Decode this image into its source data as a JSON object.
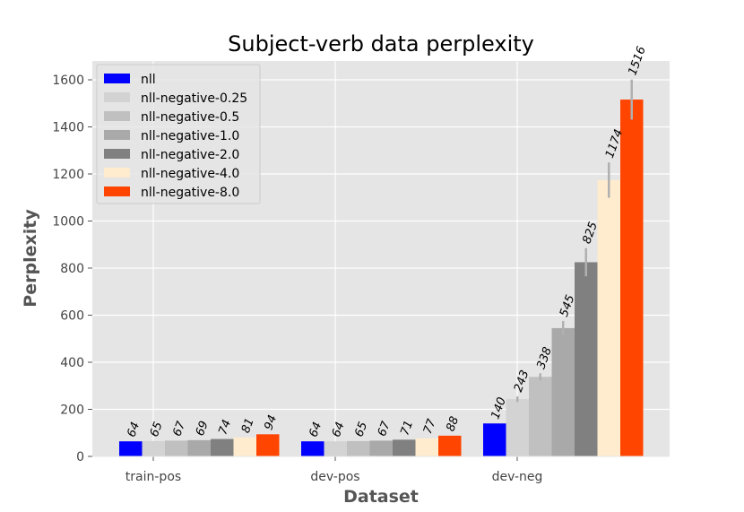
{
  "chart_data": {
    "type": "bar",
    "title": "Subject-verb data perplexity",
    "xlabel": "Dataset",
    "ylabel": "Perplexity",
    "categories": [
      "train-pos",
      "dev-pos",
      "dev-neg"
    ],
    "ylim": [
      0,
      1680
    ],
    "yticks": [
      0,
      200,
      400,
      600,
      800,
      1000,
      1200,
      1400,
      1600
    ],
    "grid": true,
    "legend_position": "top-left",
    "series": [
      {
        "name": "nll",
        "color": "#0000ff",
        "values": [
          64,
          64,
          140
        ],
        "labels": [
          "64",
          "64",
          "140"
        ],
        "errors": [
          0,
          0,
          0
        ]
      },
      {
        "name": "nll-negative-0.25",
        "color": "#d3d3d3",
        "values": [
          65,
          64,
          243
        ],
        "labels": [
          "65",
          "64",
          "243"
        ],
        "errors": [
          0,
          0,
          12
        ]
      },
      {
        "name": "nll-negative-0.5",
        "color": "#c0c0c0",
        "values": [
          67,
          65,
          338
        ],
        "labels": [
          "67",
          "65",
          "338"
        ],
        "errors": [
          0,
          0,
          15
        ]
      },
      {
        "name": "nll-negative-1.0",
        "color": "#a9a9a9",
        "values": [
          69,
          67,
          545
        ],
        "labels": [
          "69",
          "67",
          "545"
        ],
        "errors": [
          0,
          0,
          30
        ]
      },
      {
        "name": "nll-negative-2.0",
        "color": "#808080",
        "values": [
          74,
          71,
          825
        ],
        "labels": [
          "74",
          "71",
          "825"
        ],
        "errors": [
          0,
          0,
          60
        ]
      },
      {
        "name": "nll-negative-4.0",
        "color": "#ffebcd",
        "values": [
          81,
          77,
          1174
        ],
        "labels": [
          "81",
          "77",
          "1174"
        ],
        "errors": [
          0,
          0,
          75
        ]
      },
      {
        "name": "nll-negative-8.0",
        "color": "#ff4500",
        "values": [
          94,
          88,
          1516
        ],
        "labels": [
          "94",
          "88",
          "1516"
        ],
        "errors": [
          0,
          0,
          85
        ]
      }
    ]
  }
}
